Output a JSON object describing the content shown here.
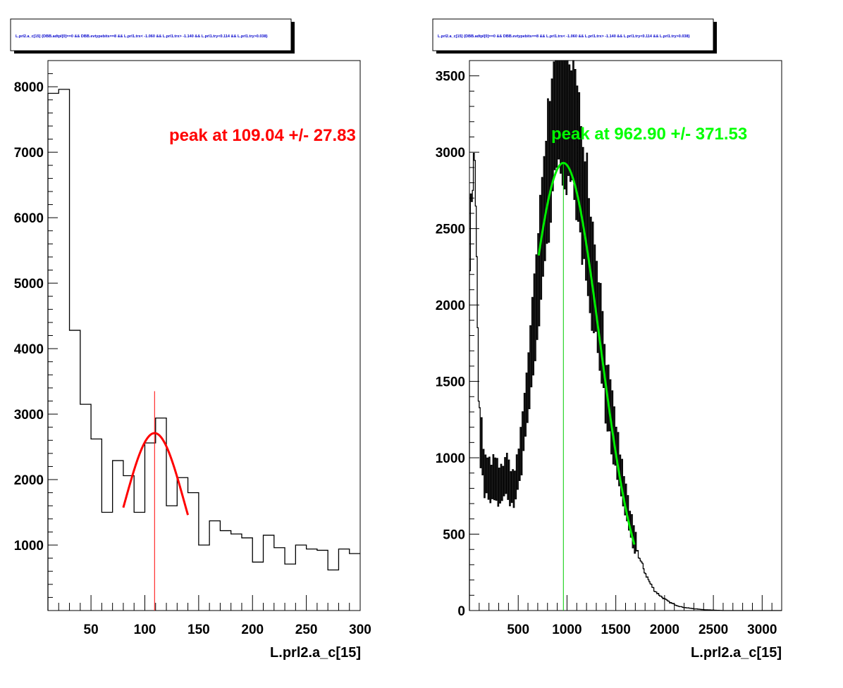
{
  "chart_data": [
    {
      "type": "histogram",
      "title": "L.prl2.a_c[15] {DBB.adtpl[0]==0 && DBB.evtypebits==8 &&  L.prl1.trx< -1.060 && L.prl1.trx> -1.140 && L.prl1.try<0.114 && L.prl1.try>0.038}",
      "xlabel": "L.prl2.a_c[15]",
      "ylabel": "",
      "xlim": [
        10,
        300
      ],
      "ylim": [
        0,
        8400
      ],
      "x_ticks": [
        50,
        100,
        150,
        200,
        250,
        300
      ],
      "y_ticks": [
        1000,
        2000,
        3000,
        4000,
        5000,
        6000,
        7000,
        8000
      ],
      "grid": false,
      "line_color": "#000000",
      "bin_edges": [
        10,
        20,
        30,
        40,
        50,
        60,
        70,
        80,
        90,
        100,
        110,
        120,
        130,
        140,
        150,
        160,
        170,
        180,
        190,
        200,
        210,
        220,
        230,
        240,
        250,
        260,
        270,
        280,
        290,
        300
      ],
      "counts": [
        7900,
        7960,
        4280,
        3150,
        2620,
        1500,
        2290,
        2060,
        1500,
        2560,
        2940,
        1600,
        2030,
        1800,
        1000,
        1370,
        1220,
        1170,
        1110,
        740,
        1150,
        960,
        710,
        1000,
        940,
        920,
        620,
        940,
        870
      ],
      "fit": {
        "color": "#ff0000",
        "mean": 109.04,
        "sigma": 27.83,
        "amplitude": 2710,
        "x_range": [
          80,
          140
        ]
      },
      "peak_marker": {
        "x": 109.04,
        "y_top": 3350,
        "color": "#ff0000"
      },
      "annotation": {
        "text": "peak at 109.04 +/- 27.83",
        "color": "#ff0000"
      }
    },
    {
      "type": "histogram",
      "title": "L.prl2.a_c[15] {DBB.adtpl[0]==0 && DBB.evtypebits==8 &&  L.prl1.trx< -1.060 && L.prl1.trx> -1.140 && L.prl1.try<0.114 && L.prl1.try>0.038}",
      "xlabel": "L.prl2.a_c[15]",
      "ylabel": "",
      "xlim": [
        0,
        3200
      ],
      "ylim": [
        0,
        3600
      ],
      "x_ticks": [
        500,
        1000,
        1500,
        2000,
        2500,
        3000
      ],
      "y_ticks": [
        0,
        500,
        1000,
        1500,
        2000,
        2500,
        3000,
        3500
      ],
      "grid": false,
      "line_color": "#000000",
      "bin_width": 10,
      "points": [
        [
          0,
          2300
        ],
        [
          30,
          2850
        ],
        [
          60,
          2950
        ],
        [
          80,
          2000
        ],
        [
          100,
          1150
        ],
        [
          130,
          1050
        ],
        [
          150,
          880
        ],
        [
          200,
          840
        ],
        [
          260,
          860
        ],
        [
          320,
          800
        ],
        [
          370,
          880
        ],
        [
          420,
          820
        ],
        [
          460,
          780
        ],
        [
          500,
          900
        ],
        [
          550,
          1150
        ],
        [
          600,
          1450
        ],
        [
          650,
          1750
        ],
        [
          700,
          2100
        ],
        [
          750,
          2450
        ],
        [
          800,
          2800
        ],
        [
          850,
          3150
        ],
        [
          900,
          3300
        ],
        [
          950,
          3380
        ],
        [
          1000,
          3280
        ],
        [
          1050,
          3150
        ],
        [
          1100,
          2950
        ],
        [
          1150,
          2750
        ],
        [
          1200,
          2600
        ],
        [
          1250,
          2250
        ],
        [
          1300,
          2050
        ],
        [
          1350,
          1800
        ],
        [
          1400,
          1450
        ],
        [
          1450,
          1250
        ],
        [
          1500,
          1080
        ],
        [
          1550,
          880
        ],
        [
          1600,
          720
        ],
        [
          1650,
          560
        ],
        [
          1700,
          440
        ],
        [
          1750,
          330
        ],
        [
          1800,
          250
        ],
        [
          1850,
          180
        ],
        [
          1900,
          130
        ],
        [
          1950,
          100
        ],
        [
          2000,
          75
        ],
        [
          2050,
          55
        ],
        [
          2100,
          40
        ],
        [
          2150,
          28
        ],
        [
          2200,
          20
        ],
        [
          2300,
          12
        ],
        [
          2400,
          6
        ],
        [
          2500,
          3
        ],
        [
          2600,
          0
        ],
        [
          3200,
          0
        ]
      ],
      "spiky_range": [
        100,
        1700
      ],
      "fit": {
        "color": "#00ee00",
        "mean": 962.9,
        "sigma": 371.53,
        "amplitude": 2930,
        "x_range": [
          710,
          1690
        ]
      },
      "peak_marker": {
        "x": 962.9,
        "y_top": 2930,
        "color": "#00cc00"
      },
      "annotation": {
        "text": "peak at 962.90 +/- 371.53",
        "color": "#00ff00"
      }
    }
  ]
}
